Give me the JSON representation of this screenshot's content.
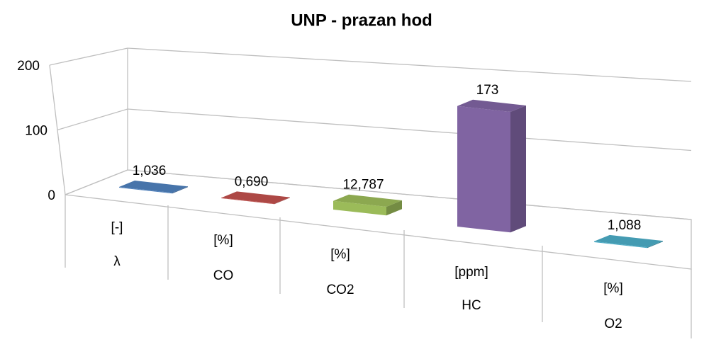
{
  "chart_data": {
    "type": "bar3d",
    "title": "UNP - prazan hod",
    "categories": [
      "λ",
      "CO",
      "CO2",
      "HC",
      "O2"
    ],
    "units": [
      "[-]",
      "[%]",
      "[%]",
      "[ppm]",
      "[%]"
    ],
    "values": [
      1.036,
      0.69,
      12.787,
      173,
      1.088
    ],
    "value_labels": [
      "1,036",
      "0,690",
      "12,787",
      "173",
      "1,088"
    ],
    "colors": [
      "#4f81bd",
      "#c0504d",
      "#9bbb59",
      "#8064a2",
      "#4bacc6"
    ],
    "ylim": [
      0,
      200
    ],
    "yticks": [
      0,
      100,
      200
    ],
    "grid": true
  }
}
